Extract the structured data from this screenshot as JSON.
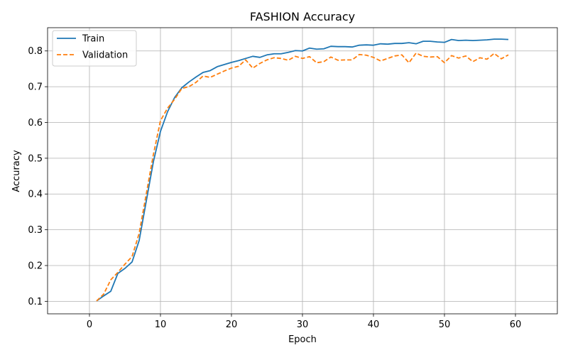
{
  "chart_data": {
    "type": "line",
    "title": "FASHION Accuracy",
    "xlabel": "Epoch",
    "ylabel": "Accuracy",
    "xlim": [
      -5.9,
      65.9
    ],
    "ylim": [
      0.065,
      0.865
    ],
    "xticks": [
      0,
      10,
      20,
      30,
      40,
      50,
      60
    ],
    "yticks": [
      0.1,
      0.2,
      0.3,
      0.4,
      0.5,
      0.6,
      0.7,
      0.8
    ],
    "grid": true,
    "legend_position": "top-left",
    "x": [
      1,
      2,
      3,
      4,
      5,
      6,
      7,
      8,
      9,
      10,
      11,
      12,
      13,
      14,
      15,
      16,
      17,
      18,
      19,
      20,
      21,
      22,
      23,
      24,
      25,
      26,
      27,
      28,
      29,
      30,
      31,
      32,
      33,
      34,
      35,
      36,
      37,
      38,
      39,
      40,
      41,
      42,
      43,
      44,
      45,
      46,
      47,
      48,
      49,
      50,
      51,
      52,
      53,
      54,
      55,
      56,
      57,
      58,
      59
    ],
    "series": [
      {
        "name": "Train",
        "color": "#1f77b4",
        "style": "solid",
        "values": [
          0.101,
          0.115,
          0.128,
          0.178,
          0.192,
          0.21,
          0.27,
          0.38,
          0.49,
          0.575,
          0.63,
          0.67,
          0.697,
          0.713,
          0.727,
          0.74,
          0.745,
          0.756,
          0.762,
          0.768,
          0.773,
          0.779,
          0.785,
          0.782,
          0.789,
          0.792,
          0.792,
          0.796,
          0.801,
          0.8,
          0.808,
          0.805,
          0.806,
          0.813,
          0.812,
          0.812,
          0.811,
          0.816,
          0.817,
          0.816,
          0.82,
          0.819,
          0.821,
          0.821,
          0.823,
          0.82,
          0.827,
          0.827,
          0.825,
          0.824,
          0.832,
          0.829,
          0.83,
          0.829,
          0.83,
          0.831,
          0.833,
          0.833,
          0.832
        ]
      },
      {
        "name": "Validation",
        "color": "#ff7f0e",
        "style": "dashed",
        "values": [
          0.101,
          0.12,
          0.16,
          0.181,
          0.204,
          0.225,
          0.29,
          0.4,
          0.51,
          0.605,
          0.64,
          0.665,
          0.695,
          0.7,
          0.712,
          0.73,
          0.726,
          0.735,
          0.744,
          0.752,
          0.757,
          0.775,
          0.752,
          0.765,
          0.775,
          0.781,
          0.779,
          0.774,
          0.785,
          0.779,
          0.784,
          0.767,
          0.77,
          0.783,
          0.774,
          0.775,
          0.775,
          0.79,
          0.788,
          0.782,
          0.772,
          0.779,
          0.786,
          0.789,
          0.767,
          0.794,
          0.785,
          0.783,
          0.784,
          0.767,
          0.787,
          0.78,
          0.786,
          0.77,
          0.781,
          0.777,
          0.793,
          0.778,
          0.789
        ]
      }
    ]
  }
}
